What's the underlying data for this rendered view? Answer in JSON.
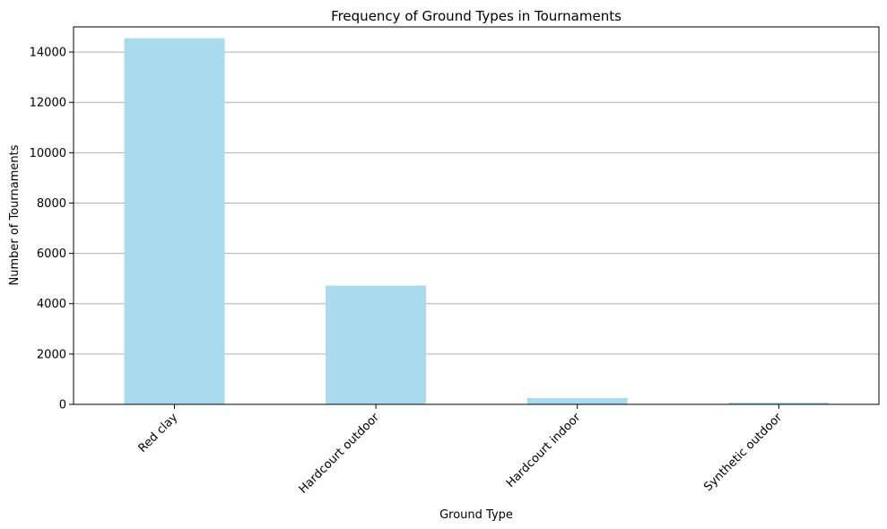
{
  "chart_data": {
    "type": "bar",
    "title": "Frequency of Ground Types in Tournaments",
    "xlabel": "Ground Type",
    "ylabel": "Number of Tournaments",
    "categories": [
      "Red clay",
      "Hardcourt outdoor",
      "Hardcourt indoor",
      "Synthetic outdoor"
    ],
    "values": [
      14550,
      4720,
      250,
      70
    ],
    "ylim": [
      0,
      15000
    ],
    "yticks": [
      0,
      2000,
      4000,
      6000,
      8000,
      10000,
      12000,
      14000
    ],
    "grid": "y-axis",
    "legend": "none",
    "bar_color": "#a8dbed",
    "grid_color": "#b0b0b0",
    "xtick_rotation": "45 degrees"
  }
}
